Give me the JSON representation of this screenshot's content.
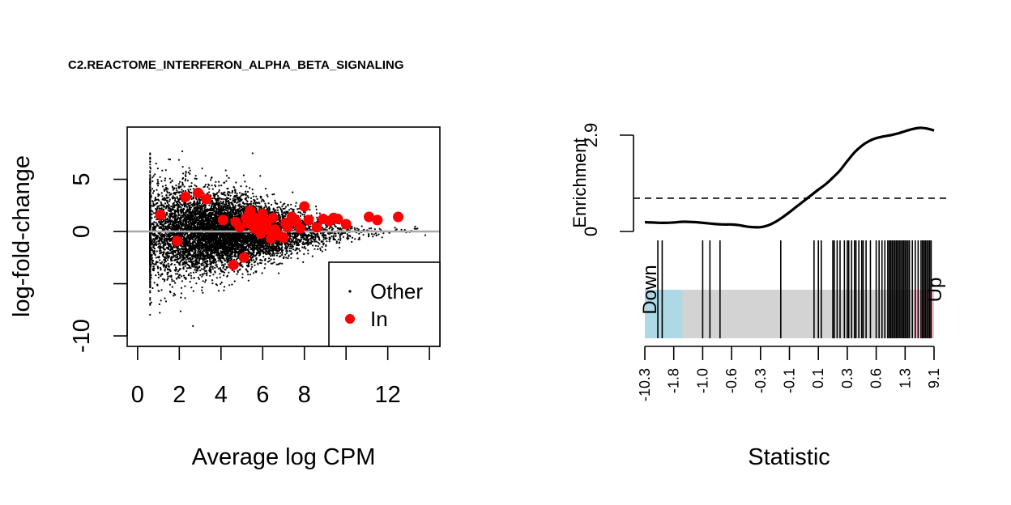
{
  "title": "C2.REACTOME_INTERFERON_ALPHA_BETA_SIGNALING",
  "colors": {
    "other_points": "#000000",
    "in_points": "#ff0000",
    "zero_line": "#aaaaaa",
    "down_bar": "#add8e6",
    "mid_bar": "#d3d3d3",
    "up_bar": "#ffc0cb",
    "curve": "#000000"
  },
  "chart_data": [
    {
      "type": "scatter",
      "xlabel": "Average log CPM",
      "ylabel": "log-fold-change",
      "xlim": [
        -0.5,
        14.5
      ],
      "ylim": [
        -11,
        10
      ],
      "xticks": [
        0,
        2,
        4,
        6,
        8,
        10,
        12,
        14
      ],
      "xtick_labels": [
        "0",
        "2",
        "4",
        "6",
        "8",
        "",
        "12",
        ""
      ],
      "yticks": [
        -10,
        -5,
        0,
        5
      ],
      "ytick_labels": [
        "-10",
        "",
        "0",
        "5"
      ],
      "zero_line": true,
      "legend": {
        "position": "bottom-right",
        "entries": [
          {
            "label": "Other",
            "marker": "dot"
          },
          {
            "label": "In",
            "marker": "circle"
          }
        ]
      },
      "series": [
        {
          "name": "In",
          "x": [
            1.1,
            1.9,
            2.3,
            2.9,
            3.3,
            4.1,
            4.6,
            4.7,
            4.9,
            5.1,
            5.2,
            5.3,
            5.4,
            5.5,
            5.6,
            5.7,
            5.8,
            5.9,
            6.0,
            6.1,
            6.2,
            6.3,
            6.4,
            6.5,
            6.6,
            6.8,
            7.0,
            7.1,
            7.2,
            7.4,
            7.6,
            7.8,
            8.0,
            8.2,
            8.6,
            8.9,
            9.2,
            9.4,
            9.6,
            10.0,
            11.1,
            11.5,
            12.5
          ],
          "y": [
            1.6,
            -0.9,
            3.3,
            3.7,
            3.1,
            1.1,
            -3.2,
            0.9,
            0.4,
            -2.5,
            1.3,
            0.8,
            2.0,
            1.5,
            0.3,
            0.6,
            1.2,
            -0.2,
            1.7,
            0.5,
            0.9,
            0.1,
            -0.7,
            1.3,
            0.2,
            -0.4,
            -0.6,
            0.8,
            0.4,
            1.4,
            1.0,
            0.3,
            2.4,
            1.1,
            0.4,
            1.2,
            1.0,
            1.3,
            1.2,
            0.7,
            1.4,
            1.1,
            1.4
          ]
        }
      ],
      "other_cloud": {
        "description_free": true,
        "count": 9000,
        "seed": 7
      }
    },
    {
      "type": "line",
      "xlabel": "Statistic",
      "ylabel": "Enrichment",
      "ylim": [
        0,
        2.9
      ],
      "ytick_labels": [
        "0",
        "2.9"
      ],
      "dashed_level": 1.0,
      "x_tick_labels": [
        "-10.3",
        "-1.8",
        "-1.0",
        "-0.6",
        "-0.3",
        "-0.1",
        "0.1",
        "0.3",
        "0.6",
        "1.3",
        "9.1"
      ],
      "x_rank": [
        0,
        0.025,
        0.05,
        0.075,
        0.1,
        0.125,
        0.15,
        0.175,
        0.2,
        0.225,
        0.25,
        0.275,
        0.3,
        0.325,
        0.35,
        0.375,
        0.4,
        0.425,
        0.45,
        0.475,
        0.5,
        0.525,
        0.55,
        0.575,
        0.6,
        0.625,
        0.65,
        0.675,
        0.7,
        0.725,
        0.75,
        0.775,
        0.8,
        0.825,
        0.85,
        0.875,
        0.9,
        0.925,
        0.95,
        0.975,
        1.0
      ],
      "enrichment": [
        0.28,
        0.27,
        0.26,
        0.26,
        0.27,
        0.29,
        0.29,
        0.28,
        0.26,
        0.24,
        0.22,
        0.21,
        0.21,
        0.19,
        0.15,
        0.13,
        0.13,
        0.18,
        0.28,
        0.42,
        0.58,
        0.75,
        0.92,
        1.09,
        1.26,
        1.42,
        1.62,
        1.84,
        2.12,
        2.38,
        2.58,
        2.72,
        2.81,
        2.86,
        2.9,
        2.95,
        3.02,
        3.08,
        3.12,
        3.1,
        3.04
      ],
      "barcode": {
        "labels": {
          "down": "Down",
          "up": "Up"
        },
        "down_region": [
          0,
          0.13
        ],
        "up_region": [
          0.925,
          1.0
        ],
        "set_ranks": [
          0.045,
          0.06,
          0.2,
          0.225,
          0.26,
          0.47,
          0.585,
          0.6,
          0.61,
          0.65,
          0.655,
          0.665,
          0.675,
          0.69,
          0.7,
          0.705,
          0.715,
          0.725,
          0.73,
          0.74,
          0.75,
          0.755,
          0.765,
          0.78,
          0.8,
          0.81,
          0.82,
          0.83,
          0.84,
          0.845,
          0.85,
          0.855,
          0.86,
          0.865,
          0.87,
          0.875,
          0.88,
          0.885,
          0.89,
          0.895,
          0.9,
          0.905,
          0.91,
          0.915,
          0.925,
          0.935,
          0.945,
          0.955,
          0.96,
          0.965,
          0.97,
          0.975,
          0.98,
          0.985,
          0.99
        ]
      }
    }
  ]
}
